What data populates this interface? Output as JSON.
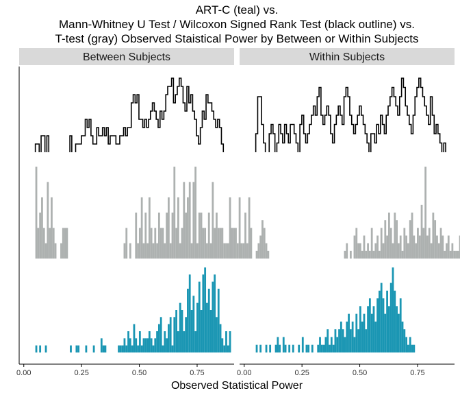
{
  "title_lines": [
    "ART-C (teal) vs.",
    "Mann-Whitney U Test / Wilcoxon Signed Rank Test (black outline) vs.",
    "T-test (gray) Observed Staistical Power by Between or Within Subjects"
  ],
  "xlabel": "Observed Statistical Power",
  "colors": {
    "teal": "#1a96b3",
    "gray": "#adb1b0",
    "outline": "#000000",
    "strip": "#d9d9d9",
    "axis": "#000000"
  },
  "chart_data": [
    {
      "type": "histogram",
      "panel": "Between Subjects",
      "xlim": [
        -0.02,
        0.91
      ],
      "xticks": [
        0.0,
        0.25,
        0.5,
        0.75
      ],
      "xtick_labels": [
        "0.00",
        "0.25",
        "0.50",
        "0.75"
      ],
      "bin_start": 0.05,
      "bin_width": 0.0083,
      "series": [
        {
          "name": "T-test",
          "style": "gray-filled",
          "values": [
            6,
            2,
            3,
            4,
            2,
            1,
            5,
            2,
            4,
            2,
            1,
            0,
            0,
            1,
            2,
            2,
            2,
            0,
            0,
            0,
            0,
            0,
            0,
            0,
            0,
            0,
            0,
            0,
            0,
            0,
            0,
            0,
            0,
            0,
            0,
            0,
            0,
            0,
            0,
            0,
            0,
            0,
            0,
            0,
            0,
            0,
            1,
            2,
            0,
            1,
            0,
            0,
            3,
            1,
            2,
            4,
            1,
            3,
            1,
            4,
            2,
            1,
            2,
            1,
            3,
            2,
            2,
            1,
            3,
            4,
            1,
            3,
            6,
            2,
            4,
            1,
            2,
            5,
            3,
            4,
            5,
            1,
            5,
            6,
            1,
            3,
            3,
            2,
            2,
            1,
            3,
            1,
            5,
            2,
            3,
            2,
            2,
            2,
            1,
            1,
            1,
            4,
            2,
            2,
            2,
            1,
            4,
            1,
            1,
            3,
            1,
            4,
            2
          ]
        },
        {
          "name": "Mann-Whitney U Test",
          "style": "black-outline",
          "values": [
            1,
            1,
            0,
            2,
            2,
            0,
            2,
            0,
            0,
            0,
            0,
            0,
            0,
            0,
            0,
            0,
            0,
            0,
            2,
            0,
            0,
            1,
            1,
            1,
            2,
            2,
            4,
            3,
            4,
            2,
            1,
            1,
            3,
            2,
            2,
            3,
            2,
            3,
            1,
            2,
            2,
            2,
            1,
            1,
            2,
            2,
            3,
            2,
            3,
            3,
            6,
            7,
            6,
            7,
            4,
            4,
            3,
            4,
            3,
            4,
            5,
            6,
            5,
            4,
            3,
            5,
            4,
            5,
            7,
            8,
            8,
            9,
            6,
            7,
            8,
            9,
            8,
            6,
            5,
            8,
            6,
            7,
            5,
            4,
            2,
            1,
            3,
            5,
            4,
            7,
            6,
            6,
            5,
            4,
            3,
            4,
            3,
            1
          ]
        },
        {
          "name": "ART-C",
          "style": "teal-filled",
          "values": [
            1,
            0,
            1,
            0,
            0,
            1,
            0,
            0,
            0,
            0,
            0,
            0,
            0,
            0,
            0,
            0,
            0,
            0,
            1,
            0,
            0,
            1,
            1,
            0,
            0,
            0,
            1,
            0,
            0,
            0,
            1,
            0,
            0,
            0,
            2,
            1,
            1,
            0,
            0,
            0,
            0,
            0,
            0,
            1,
            1,
            1,
            2,
            1,
            3,
            2,
            1,
            4,
            2,
            1,
            3,
            1,
            2,
            2,
            2,
            3,
            2,
            1,
            2,
            3,
            4,
            5,
            1,
            3,
            2,
            4,
            5,
            1,
            5,
            6,
            3,
            7,
            6,
            3,
            5,
            9,
            11,
            6,
            8,
            3,
            7,
            10,
            6,
            11,
            12,
            7,
            9,
            6,
            10,
            11,
            5,
            9,
            4,
            2,
            1,
            3,
            1,
            3
          ]
        }
      ]
    },
    {
      "type": "histogram",
      "panel": "Within Subjects",
      "xlim": [
        -0.02,
        0.91
      ],
      "xticks": [
        0.0,
        0.25,
        0.5,
        0.75
      ],
      "xtick_labels": [
        "0.00",
        "0.25",
        "0.50",
        "0.75"
      ],
      "bin_start": 0.05,
      "bin_width": 0.0083,
      "series": [
        {
          "name": "T-test",
          "style": "gray-filled",
          "values": [
            1,
            2,
            3,
            5,
            4,
            2,
            1,
            0,
            0,
            0,
            0,
            0,
            0,
            0,
            0,
            0,
            0,
            0,
            0,
            0,
            0,
            0,
            0,
            0,
            0,
            0,
            0,
            0,
            0,
            0,
            0,
            0,
            0,
            0,
            0,
            0,
            0,
            0,
            0,
            0,
            0,
            0,
            0,
            0,
            0,
            0,
            1,
            2,
            0,
            1,
            0,
            3,
            4,
            2,
            2,
            1,
            3,
            1,
            2,
            1,
            4,
            1,
            2,
            3,
            1,
            4,
            2,
            5,
            3,
            6,
            4,
            2,
            6,
            5,
            2,
            3,
            1,
            4,
            3,
            2,
            5,
            6,
            3,
            2,
            4,
            3,
            7,
            4,
            12,
            3,
            4,
            2,
            6,
            5,
            3,
            2,
            4,
            3,
            1,
            2,
            3,
            1,
            2,
            1,
            1,
            1,
            3,
            2,
            3,
            2,
            2,
            3
          ]
        },
        {
          "name": "Wilcoxon Signed Rank Test",
          "style": "black-outline",
          "values": [
            2,
            6,
            6,
            3,
            1,
            0,
            0,
            2,
            3,
            2,
            0,
            1,
            3,
            2,
            1,
            3,
            2,
            1,
            3,
            3,
            2,
            1,
            0,
            3,
            4,
            2,
            1,
            2,
            3,
            4,
            5,
            4,
            6,
            7,
            4,
            3,
            4,
            5,
            4,
            2,
            1,
            3,
            4,
            5,
            4,
            3,
            6,
            7,
            6,
            4,
            3,
            2,
            3,
            4,
            5,
            4,
            3,
            2,
            1,
            0,
            2,
            2,
            1,
            3,
            2,
            4,
            3,
            2,
            4,
            5,
            6,
            7,
            6,
            5,
            4,
            6,
            8,
            7,
            5,
            4,
            3,
            2,
            4,
            6,
            7,
            8,
            7,
            6,
            5,
            4,
            3,
            6,
            4,
            2,
            3,
            2,
            1,
            0,
            1
          ]
        },
        {
          "name": "ART-C",
          "style": "teal-filled",
          "values": [
            1,
            0,
            1,
            0,
            0,
            1,
            0,
            1,
            0,
            0,
            1,
            2,
            1,
            0,
            2,
            1,
            0,
            1,
            0,
            1,
            0,
            0,
            1,
            0,
            2,
            0,
            1,
            1,
            0,
            1,
            0,
            0,
            1,
            2,
            1,
            1,
            2,
            3,
            1,
            2,
            1,
            3,
            2,
            3,
            4,
            3,
            2,
            4,
            5,
            3,
            4,
            2,
            5,
            3,
            6,
            4,
            5,
            3,
            6,
            7,
            5,
            6,
            4,
            7,
            8,
            9,
            7,
            5,
            8,
            6,
            9,
            11,
            8,
            6,
            5,
            7,
            4,
            3,
            2,
            1,
            2,
            1,
            1,
            0
          ]
        }
      ]
    }
  ]
}
